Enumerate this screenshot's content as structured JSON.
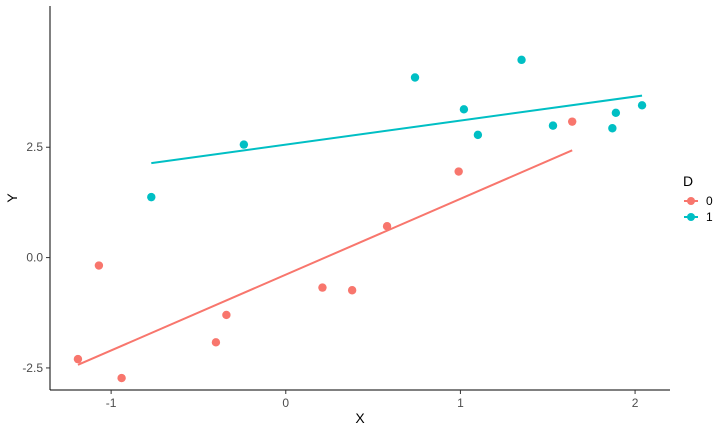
{
  "chart_data": {
    "type": "scatter",
    "xlabel": "X",
    "ylabel": "Y",
    "xlim": [
      -1.35,
      2.2
    ],
    "ylim": [
      -3.0,
      5.7
    ],
    "x_ticks": [
      -1,
      0,
      1,
      2
    ],
    "x_tick_labels": [
      "-1",
      "0",
      "1",
      "2"
    ],
    "y_ticks": [
      -2.5,
      0.0,
      2.5
    ],
    "y_tick_labels": [
      "-2.5",
      "0.0",
      "2.5"
    ],
    "grid": false,
    "legend": {
      "title": "D",
      "position": "right"
    },
    "series": [
      {
        "name": "0",
        "color": "#F8766D",
        "points": [
          {
            "x": -1.19,
            "y": -2.3
          },
          {
            "x": -1.07,
            "y": -0.18
          },
          {
            "x": -0.94,
            "y": -2.73
          },
          {
            "x": -0.4,
            "y": -1.92
          },
          {
            "x": -0.34,
            "y": -1.3
          },
          {
            "x": 0.21,
            "y": -0.68
          },
          {
            "x": 0.38,
            "y": -0.74
          },
          {
            "x": 0.58,
            "y": 0.71
          },
          {
            "x": 0.99,
            "y": 1.95
          },
          {
            "x": 1.64,
            "y": 3.08
          }
        ],
        "fit": {
          "x": [
            -1.19,
            1.64
          ],
          "y": [
            -2.43,
            2.43
          ]
        }
      },
      {
        "name": "1",
        "color": "#00BFC4",
        "points": [
          {
            "x": -0.77,
            "y": 1.37
          },
          {
            "x": -0.24,
            "y": 2.56
          },
          {
            "x": 0.74,
            "y": 4.08
          },
          {
            "x": 1.02,
            "y": 3.36
          },
          {
            "x": 1.1,
            "y": 2.78
          },
          {
            "x": 1.35,
            "y": 4.48
          },
          {
            "x": 1.53,
            "y": 2.99
          },
          {
            "x": 1.87,
            "y": 2.93
          },
          {
            "x": 1.89,
            "y": 3.28
          },
          {
            "x": 2.04,
            "y": 3.45
          }
        ],
        "fit": {
          "x": [
            -0.77,
            2.04
          ],
          "y": [
            2.14,
            3.67
          ]
        }
      }
    ]
  }
}
